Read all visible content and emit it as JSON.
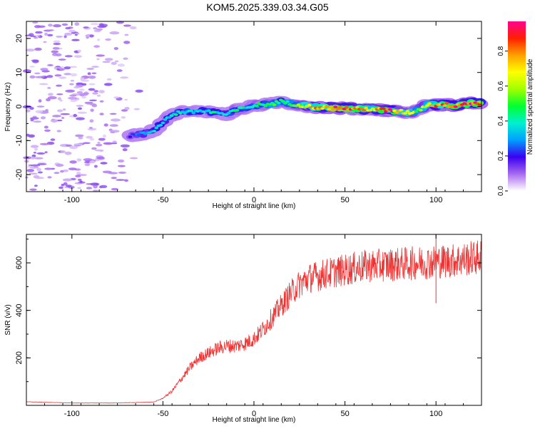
{
  "title": "KOM5.2025.339.03.34.G05",
  "chart_data": [
    {
      "type": "heatmap",
      "name": "spectrogram",
      "xlabel": "Height of straight line (km)",
      "ylabel": "Frequency (Hz)",
      "xlim": [
        -125,
        125
      ],
      "ylim": [
        -25,
        25
      ],
      "xticks": [
        -100,
        -50,
        0,
        50,
        100
      ],
      "yticks": [
        -20,
        -10,
        0,
        10,
        20
      ],
      "ridge": {
        "x": [
          -68,
          -60,
          -55,
          -50,
          -45,
          -40,
          -35,
          -30,
          -25,
          -20,
          -15,
          -10,
          -5,
          0,
          5,
          10,
          15,
          20,
          25,
          30,
          35,
          40,
          45,
          50,
          55,
          60,
          65,
          70,
          75,
          80,
          85,
          90,
          95,
          100,
          105,
          110,
          115,
          120,
          125
        ],
        "y": [
          -8.5,
          -8,
          -7,
          -4.5,
          -2.5,
          -1.5,
          -1.8,
          -1.2,
          -1.5,
          -1.8,
          -2.5,
          -1,
          -0.5,
          0.3,
          0.5,
          0.8,
          1.5,
          0.8,
          0.5,
          0,
          -0.2,
          -0.3,
          -0.5,
          -0.5,
          -0.7,
          -0.8,
          -0.7,
          -1,
          -1.2,
          -1.5,
          -1.8,
          -1.2,
          0.5,
          0.5,
          0.6,
          0.3,
          0.8,
          1,
          0.8
        ],
        "peak_amplitude": [
          0.2,
          0.3,
          0.35,
          0.35,
          0.4,
          0.4,
          0.4,
          0.35,
          0.4,
          0.4,
          0.35,
          0.45,
          0.4,
          0.45,
          0.45,
          0.5,
          0.45,
          0.45,
          0.55,
          0.7,
          0.8,
          0.85,
          0.9,
          0.9,
          0.85,
          0.75,
          0.7,
          0.85,
          0.9,
          0.7,
          0.65,
          0.55,
          0.65,
          0.8,
          0.85,
          0.85,
          0.95,
          0.9,
          0.95
        ]
      },
      "noise_region_x": [
        -125,
        -60
      ],
      "noise_amplitude": 0.08
    },
    {
      "type": "colorbar",
      "name": "colorbar",
      "label": "Normalized spectral amplitude",
      "range": [
        0,
        0.97
      ],
      "ticks": [
        0.0,
        0.2,
        0.4,
        0.6,
        0.8
      ],
      "tick_labels": [
        "0.0",
        "0.2",
        "0.4",
        "0.6",
        "0.8"
      ]
    },
    {
      "type": "line",
      "name": "snr",
      "xlabel": "Height of straight line (km)",
      "ylabel": "SNR (v/v)",
      "xlim": [
        -125,
        125
      ],
      "ylim": [
        0,
        720
      ],
      "xticks": [
        -100,
        -50,
        0,
        50,
        100
      ],
      "yticks": [
        200,
        400,
        600
      ],
      "color": "#ee3333",
      "trend": {
        "x": [
          -125,
          -100,
          -75,
          -55,
          -50,
          -45,
          -40,
          -35,
          -30,
          -25,
          -20,
          -15,
          -10,
          -5,
          0,
          5,
          10,
          15,
          20,
          25,
          30,
          40,
          50,
          60,
          70,
          80,
          90,
          100,
          110,
          120,
          125
        ],
        "y": [
          15,
          10,
          10,
          14,
          30,
          60,
          110,
          160,
          200,
          220,
          240,
          250,
          250,
          260,
          280,
          320,
          370,
          420,
          470,
          510,
          535,
          555,
          570,
          585,
          590,
          595,
          600,
          605,
          610,
          620,
          625
        ]
      },
      "noise_amplitude_fraction": 0.12,
      "spikes": [
        {
          "x": 100,
          "y": 720
        },
        {
          "x": 100,
          "y": 430
        }
      ]
    }
  ]
}
